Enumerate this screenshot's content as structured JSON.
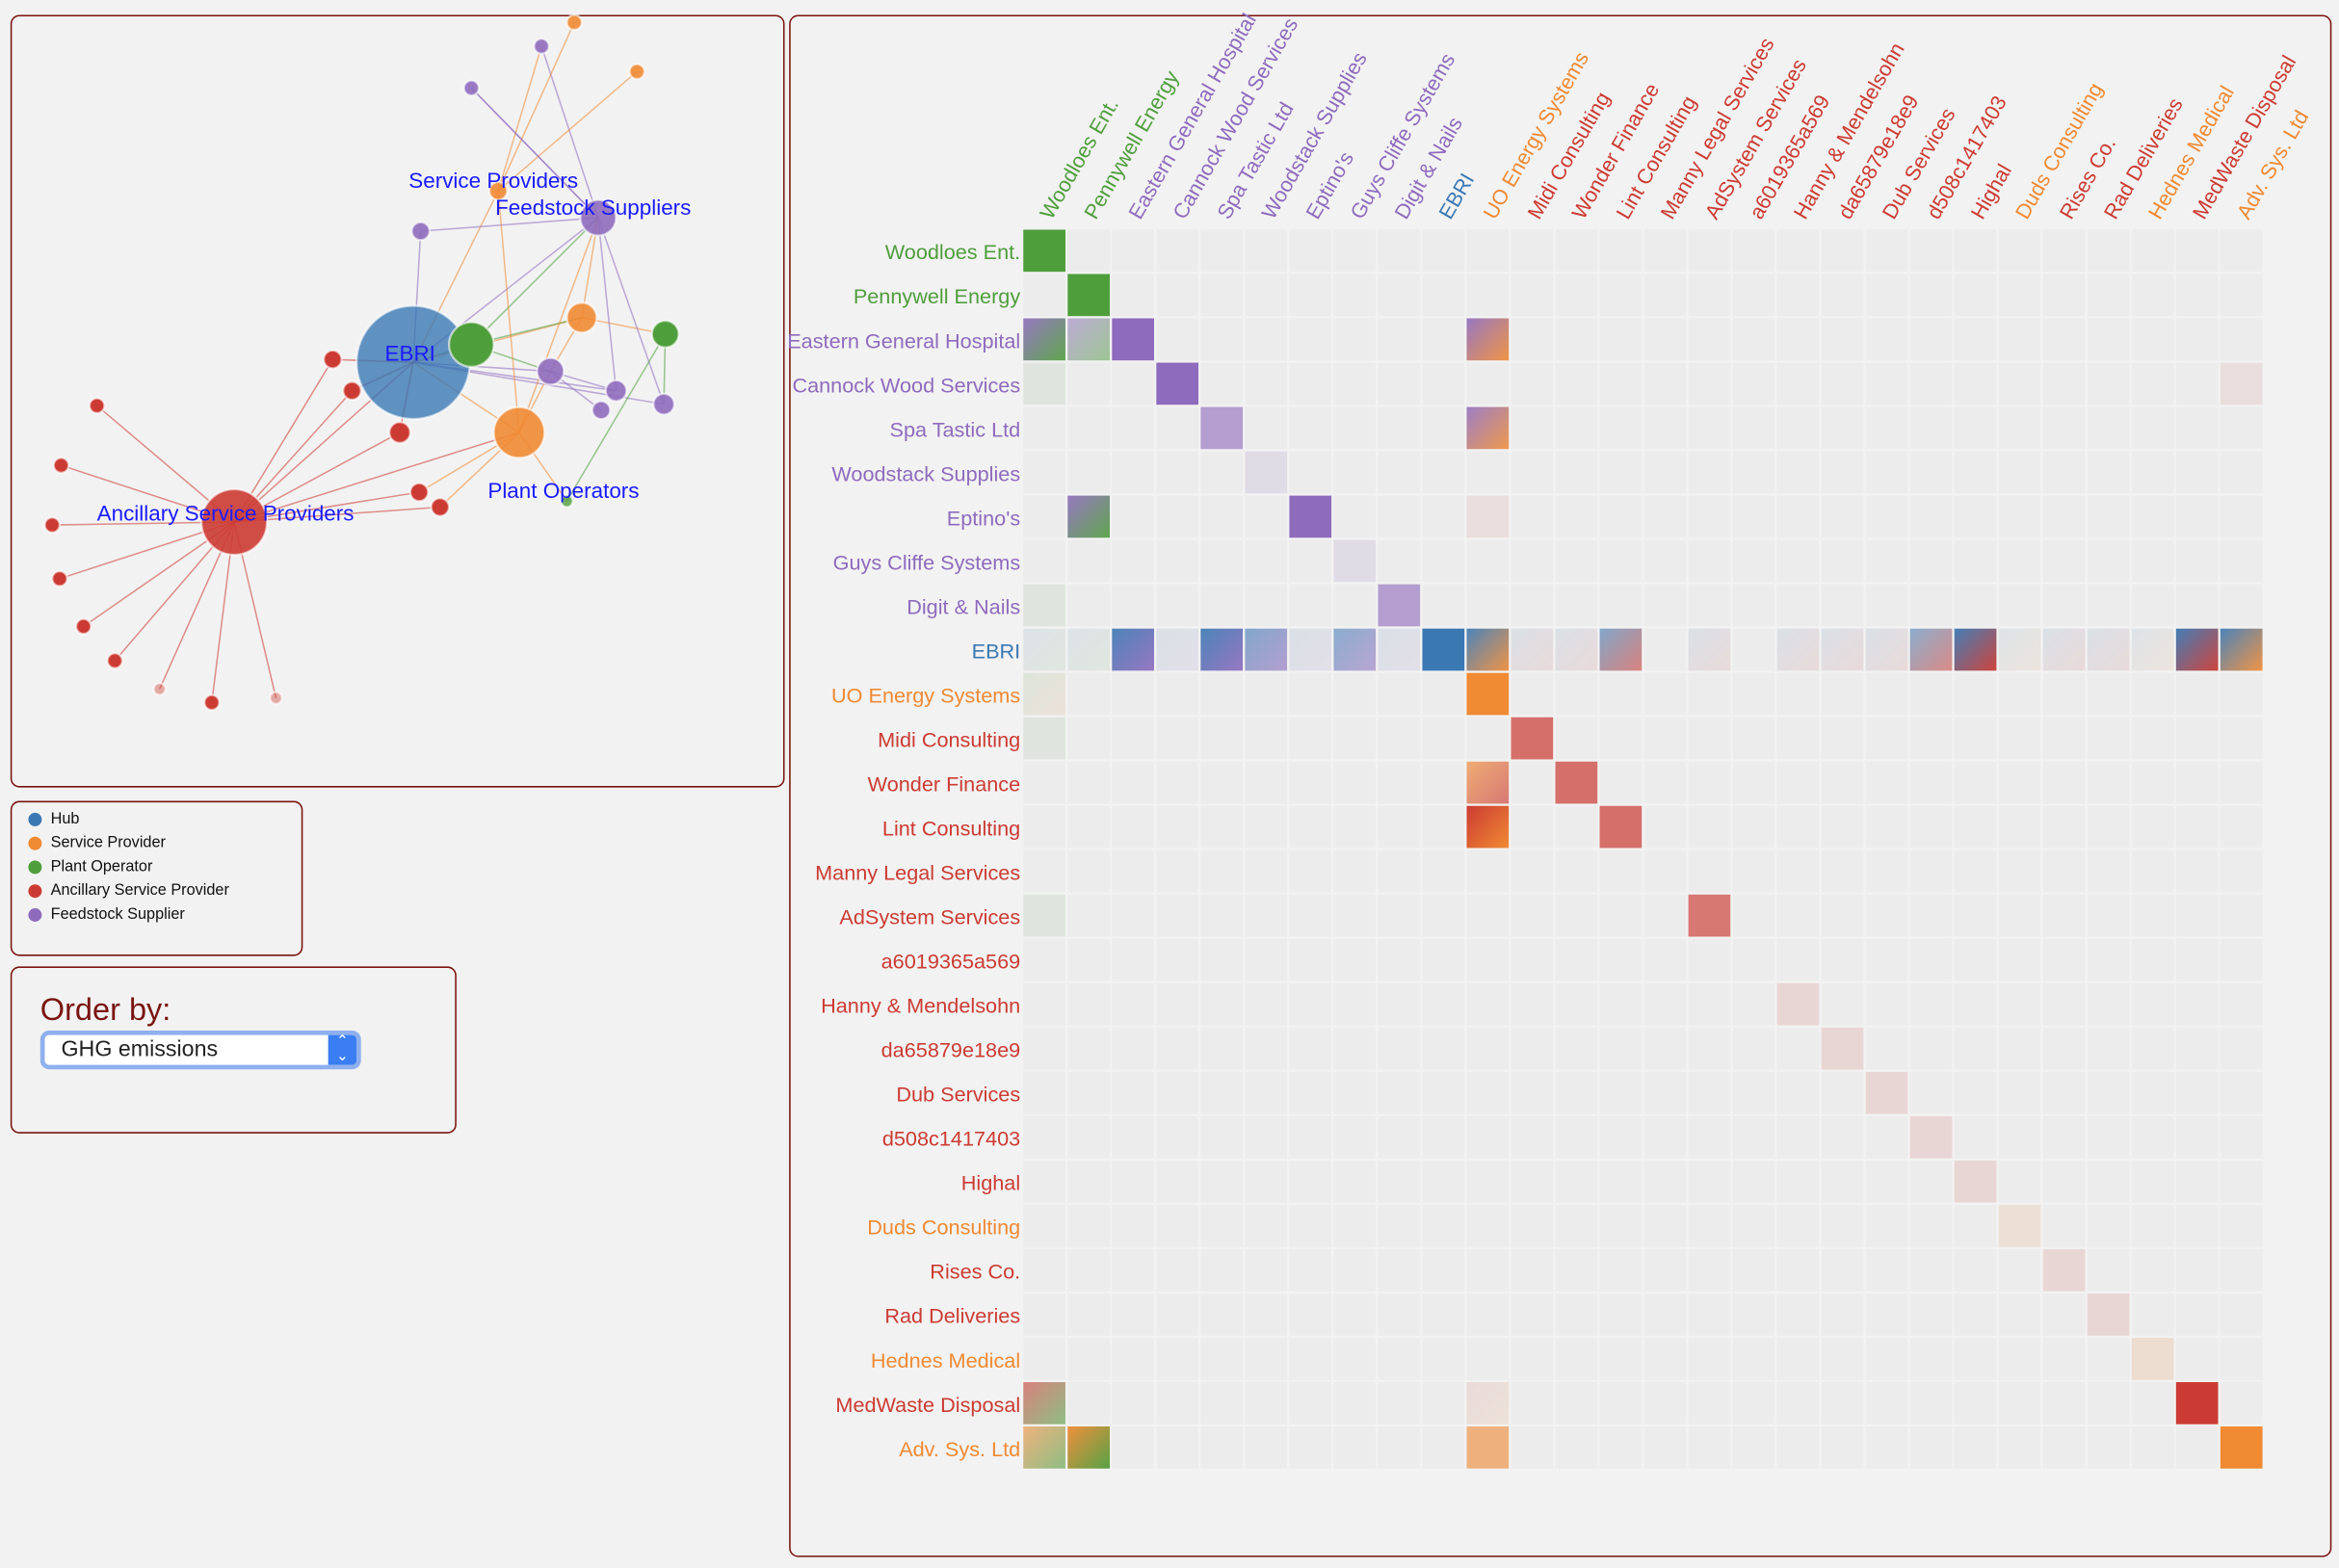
{
  "network": {
    "group_labels": [
      "Service Providers",
      "Feedstock Suppliers",
      "EBRI",
      "Plant Operators",
      "Ancillary Service Providers"
    ]
  },
  "legend": {
    "items": [
      {
        "label": "Hub",
        "color": "#3a78b4"
      },
      {
        "label": "Service Provider",
        "color": "#f08a33"
      },
      {
        "label": "Plant Operator",
        "color": "#4f9e3c"
      },
      {
        "label": "Ancillary Service Provider",
        "color": "#cc3b33"
      },
      {
        "label": "Feedstock Supplier",
        "color": "#8e6bbd"
      }
    ]
  },
  "order": {
    "label": "Order by:",
    "selected": "GHG emissions"
  },
  "colors": {
    "hub": "#3a78b4",
    "service": "#f08a33",
    "plant": "#4f9e3c",
    "ancillary": "#cc3b33",
    "feedstock": "#8e6bbd",
    "border": "#7a1410"
  },
  "chart_data": {
    "type": "heatmap",
    "entities": [
      {
        "name": "Woodloes Ent.",
        "group": "plant"
      },
      {
        "name": "Pennywell Energy",
        "group": "plant"
      },
      {
        "name": "Eastern General Hospital",
        "group": "feedstock"
      },
      {
        "name": "Cannock Wood Services",
        "group": "feedstock"
      },
      {
        "name": "Spa Tastic Ltd",
        "group": "feedstock"
      },
      {
        "name": "Woodstack Supplies",
        "group": "feedstock"
      },
      {
        "name": "Eptino's",
        "group": "feedstock"
      },
      {
        "name": "Guys Cliffe Systems",
        "group": "feedstock"
      },
      {
        "name": "Digit & Nails",
        "group": "feedstock"
      },
      {
        "name": "EBRI",
        "group": "hub"
      },
      {
        "name": "UO Energy Systems",
        "group": "service"
      },
      {
        "name": "Midi Consulting",
        "group": "ancillary"
      },
      {
        "name": "Wonder Finance",
        "group": "ancillary"
      },
      {
        "name": "Lint Consulting",
        "group": "ancillary"
      },
      {
        "name": "Manny Legal Services",
        "group": "ancillary"
      },
      {
        "name": "AdSystem Services",
        "group": "ancillary"
      },
      {
        "name": "a6019365a569",
        "group": "ancillary"
      },
      {
        "name": "Hanny & Mendelsohn",
        "group": "ancillary"
      },
      {
        "name": "da65879e18e9",
        "group": "ancillary"
      },
      {
        "name": "Dub Services",
        "group": "ancillary"
      },
      {
        "name": "d508c1417403",
        "group": "ancillary"
      },
      {
        "name": "Highal",
        "group": "ancillary"
      },
      {
        "name": "Duds Consulting",
        "group": "service"
      },
      {
        "name": "Rises Co.",
        "group": "ancillary"
      },
      {
        "name": "Rad Deliveries",
        "group": "ancillary"
      },
      {
        "name": "Hednes Medical",
        "group": "service"
      },
      {
        "name": "MedWaste Disposal",
        "group": "ancillary"
      },
      {
        "name": "Adv. Sys. Ltd",
        "group": "service"
      }
    ],
    "cells": [
      [
        0,
        0,
        "plant",
        "plant",
        1
      ],
      [
        1,
        1,
        "plant",
        "plant",
        1
      ],
      [
        2,
        0,
        "feedstock",
        "plant",
        0.9
      ],
      [
        2,
        1,
        "feedstock",
        "plant",
        0.5
      ],
      [
        2,
        2,
        "feedstock",
        "feedstock",
        1
      ],
      [
        2,
        10,
        "feedstock",
        "service",
        0.9
      ],
      [
        3,
        0,
        "plant",
        "plant",
        0.08
      ],
      [
        3,
        3,
        "feedstock",
        "feedstock",
        1
      ],
      [
        3,
        27,
        "ancillary",
        "ancillary",
        0.08
      ],
      [
        4,
        4,
        "feedstock",
        "feedstock",
        0.6
      ],
      [
        4,
        10,
        "feedstock",
        "service",
        0.85
      ],
      [
        5,
        5,
        "feedstock",
        "feedstock",
        0.12
      ],
      [
        6,
        1,
        "feedstock",
        "plant",
        0.9
      ],
      [
        6,
        6,
        "feedstock",
        "feedstock",
        1
      ],
      [
        6,
        10,
        "ancillary",
        "ancillary",
        0.08
      ],
      [
        7,
        7,
        "feedstock",
        "feedstock",
        0.12
      ],
      [
        8,
        0,
        "plant",
        "plant",
        0.08
      ],
      [
        8,
        8,
        "feedstock",
        "feedstock",
        0.6
      ],
      [
        9,
        0,
        "hub",
        "plant",
        0.08
      ],
      [
        9,
        1,
        "hub",
        "plant",
        0.08
      ],
      [
        9,
        2,
        "hub",
        "feedstock",
        0.9
      ],
      [
        9,
        3,
        "hub",
        "feedstock",
        0.1
      ],
      [
        9,
        4,
        "hub",
        "feedstock",
        0.9
      ],
      [
        9,
        5,
        "hub",
        "feedstock",
        0.6
      ],
      [
        9,
        6,
        "hub",
        "feedstock",
        0.1
      ],
      [
        9,
        7,
        "hub",
        "feedstock",
        0.55
      ],
      [
        9,
        8,
        "hub",
        "feedstock",
        0.1
      ],
      [
        9,
        9,
        "hub",
        "hub",
        1
      ],
      [
        9,
        10,
        "hub",
        "service",
        0.9
      ],
      [
        9,
        11,
        "hub",
        "ancillary",
        0.1
      ],
      [
        9,
        12,
        "hub",
        "ancillary",
        0.1
      ],
      [
        9,
        13,
        "hub",
        "ancillary",
        0.6
      ],
      [
        9,
        15,
        "hub",
        "ancillary",
        0.1
      ],
      [
        9,
        17,
        "hub",
        "ancillary",
        0.1
      ],
      [
        9,
        18,
        "hub",
        "ancillary",
        0.1
      ],
      [
        9,
        19,
        "hub",
        "ancillary",
        0.1
      ],
      [
        9,
        20,
        "hub",
        "ancillary",
        0.55
      ],
      [
        9,
        21,
        "hub",
        "ancillary",
        0.95
      ],
      [
        9,
        22,
        "hub",
        "service",
        0.08
      ],
      [
        9,
        23,
        "hub",
        "ancillary",
        0.1
      ],
      [
        9,
        24,
        "hub",
        "ancillary",
        0.1
      ],
      [
        9,
        25,
        "hub",
        "service",
        0.08
      ],
      [
        9,
        26,
        "hub",
        "ancillary",
        0.95
      ],
      [
        9,
        27,
        "hub",
        "service",
        0.9
      ],
      [
        10,
        0,
        "plant",
        "service",
        0.1
      ],
      [
        10,
        10,
        "service",
        "service",
        1
      ],
      [
        11,
        0,
        "plant",
        "plant",
        0.08
      ],
      [
        11,
        11,
        "ancillary",
        "ancillary",
        0.7
      ],
      [
        12,
        10,
        "service",
        "ancillary",
        0.65
      ],
      [
        12,
        12,
        "ancillary",
        "ancillary",
        0.7
      ],
      [
        13,
        10,
        "ancillary",
        "service",
        1
      ],
      [
        13,
        13,
        "ancillary",
        "ancillary",
        0.7
      ],
      [
        15,
        0,
        "plant",
        "plant",
        0.08
      ],
      [
        15,
        15,
        "ancillary",
        "ancillary",
        0.65
      ],
      [
        17,
        17,
        "ancillary",
        "ancillary",
        0.12
      ],
      [
        18,
        18,
        "ancillary",
        "ancillary",
        0.12
      ],
      [
        19,
        19,
        "ancillary",
        "ancillary",
        0.12
      ],
      [
        20,
        20,
        "ancillary",
        "ancillary",
        0.12
      ],
      [
        21,
        21,
        "ancillary",
        "ancillary",
        0.12
      ],
      [
        22,
        22,
        "service",
        "service",
        0.12
      ],
      [
        23,
        23,
        "ancillary",
        "ancillary",
        0.12
      ],
      [
        24,
        24,
        "ancillary",
        "ancillary",
        0.12
      ],
      [
        25,
        25,
        "service",
        "service",
        0.15
      ],
      [
        26,
        0,
        "ancillary",
        "plant",
        0.6
      ],
      [
        26,
        10,
        "ancillary",
        "service",
        0.1
      ],
      [
        26,
        26,
        "ancillary",
        "ancillary",
        1
      ],
      [
        27,
        0,
        "service",
        "plant",
        0.6
      ],
      [
        27,
        1,
        "service",
        "plant",
        0.95
      ],
      [
        27,
        10,
        "service",
        "service",
        0.6
      ],
      [
        27,
        27,
        "service",
        "service",
        1
      ]
    ]
  }
}
